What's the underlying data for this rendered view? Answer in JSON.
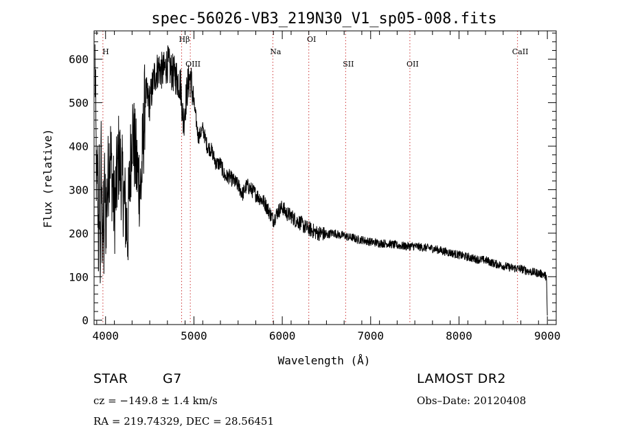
{
  "chart_data": {
    "type": "line",
    "title": "spec-56026-VB3_219N30_V1_sp05-008.fits",
    "xlabel": "Wavelength (Å)",
    "ylabel": "Flux (relative)",
    "xlim": [
      3870,
      9100
    ],
    "ylim": [
      -10,
      665
    ],
    "xticks": [
      4000,
      5000,
      6000,
      7000,
      8000,
      9000
    ],
    "xtick_labels": [
      "4000",
      "5000",
      "6000",
      "7000",
      "8000",
      "9000"
    ],
    "yticks": [
      0,
      100,
      200,
      300,
      400,
      500,
      600
    ],
    "ytick_labels": [
      "0",
      "100",
      "200",
      "300",
      "400",
      "500",
      "600"
    ],
    "line_color": "#000000",
    "marker_color": "#cc3333",
    "series": [
      {
        "x": [
          3880,
          3890,
          3900,
          3910,
          3920,
          3930,
          3940,
          3950,
          3960,
          3970,
          3980,
          3990,
          4000,
          4050,
          4100,
          4150,
          4200,
          4250,
          4300,
          4350,
          4400,
          4450,
          4500,
          4550,
          4600,
          4650,
          4700,
          4750,
          4800,
          4850,
          4880,
          4900,
          4930,
          4960,
          5000,
          5050,
          5100,
          5150,
          5200,
          5250,
          5300,
          5350,
          5400,
          5450,
          5500,
          5550,
          5600,
          5650,
          5700,
          5750,
          5800,
          5850,
          5900,
          5950,
          6000,
          6050,
          6100,
          6150,
          6200,
          6250,
          6300,
          6350,
          6400,
          6450,
          6500,
          6550,
          6600,
          6650,
          6700,
          6750,
          6800,
          6850,
          6900,
          6950,
          7000,
          7100,
          7200,
          7300,
          7400,
          7500,
          7600,
          7700,
          7800,
          7900,
          8000,
          8100,
          8200,
          8300,
          8400,
          8500,
          8600,
          8700,
          8800,
          8900,
          8950,
          8990,
          9000
        ],
        "y": [
          600,
          430,
          280,
          360,
          150,
          340,
          110,
          380,
          200,
          260,
          140,
          330,
          230,
          400,
          250,
          380,
          300,
          200,
          450,
          350,
          300,
          520,
          500,
          560,
          580,
          570,
          590,
          570,
          560,
          540,
          450,
          490,
          540,
          560,
          500,
          420,
          440,
          400,
          390,
          360,
          360,
          330,
          330,
          320,
          310,
          290,
          310,
          300,
          290,
          280,
          270,
          250,
          230,
          250,
          260,
          245,
          240,
          230,
          225,
          215,
          210,
          205,
          200,
          200,
          195,
          200,
          200,
          195,
          195,
          190,
          190,
          185,
          185,
          182,
          180,
          177,
          176,
          172,
          170,
          170,
          167,
          165,
          160,
          155,
          150,
          145,
          140,
          138,
          130,
          125,
          120,
          118,
          112,
          108,
          106,
          100,
          5
        ]
      }
    ],
    "lines": [
      {
        "x": 3970,
        "label": "H",
        "row": 1
      },
      {
        "x": 4861,
        "label": "Hβ",
        "row": 0
      },
      {
        "x": 4959,
        "label": "OIII",
        "row": 2
      },
      {
        "x": 5893,
        "label": "Na",
        "row": 1
      },
      {
        "x": 6300,
        "label": "OI",
        "row": 0
      },
      {
        "x": 6717,
        "label": "SII",
        "row": 2
      },
      {
        "x": 7444,
        "label": "OII",
        "row": 2
      },
      {
        "x": 8662,
        "label": "CaII",
        "row": 1
      }
    ]
  },
  "info": {
    "object": "STAR",
    "subclass": "G7",
    "survey": "LAMOST DR2",
    "cz": "cz = −149.8 ± 1.4 km/s",
    "obs_date": "Obs–Date: 20120408",
    "coords": "RA = 219.74329, DEC =  28.56451"
  }
}
